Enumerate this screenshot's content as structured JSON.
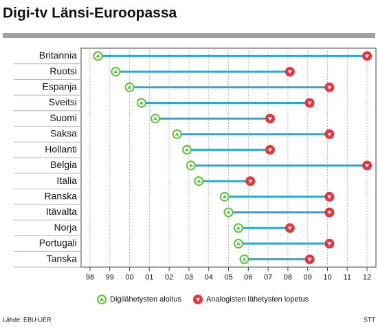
{
  "chart_data": {
    "type": "dumbbell",
    "title": "Digi-tv Länsi-Euroopassa",
    "categories": [
      "Britannia",
      "Ruotsi",
      "Espanja",
      "Sveitsi",
      "Suomi",
      "Saksa",
      "Hollanti",
      "Belgia",
      "Italia",
      "Ranska",
      "Itävalta",
      "Norja",
      "Portugali",
      "Tanska"
    ],
    "series": [
      {
        "name": "Digilähetysten aloitus",
        "color": "#5cc43b",
        "values": [
          1998.4,
          1999.3,
          2000.0,
          2000.6,
          2001.3,
          2002.4,
          2002.9,
          2003.1,
          2003.5,
          2004.8,
          2005.0,
          2005.5,
          2005.5,
          2005.8
        ]
      },
      {
        "name": "Analogisten lähetysten lopetus",
        "color": "#e8343c",
        "values": [
          2012.0,
          2008.1,
          2010.1,
          2009.1,
          2007.1,
          2010.1,
          2007.1,
          2012.0,
          2006.1,
          2010.1,
          2010.1,
          2008.1,
          2010.1,
          2009.1
        ]
      }
    ],
    "line_color": "#29a8e0",
    "xlim": [
      1997.55,
      2012.45
    ],
    "xticks": [
      {
        "value": 1998,
        "label": "98"
      },
      {
        "value": 1999,
        "label": "99"
      },
      {
        "value": 2000,
        "label": "00"
      },
      {
        "value": 2001,
        "label": "01"
      },
      {
        "value": 2002,
        "label": "02"
      },
      {
        "value": 2003,
        "label": "03"
      },
      {
        "value": 2004,
        "label": "04"
      },
      {
        "value": 2005,
        "label": "05"
      },
      {
        "value": 2006,
        "label": "06"
      },
      {
        "value": 2007,
        "label": "07"
      },
      {
        "value": 2008,
        "label": "08"
      },
      {
        "value": 2009,
        "label": "09"
      },
      {
        "value": 2010,
        "label": "10"
      },
      {
        "value": 2011,
        "label": "11"
      },
      {
        "value": 2012,
        "label": "12"
      }
    ],
    "grid": true
  },
  "source": "Lähde: EBU-UER",
  "credit": "STT"
}
